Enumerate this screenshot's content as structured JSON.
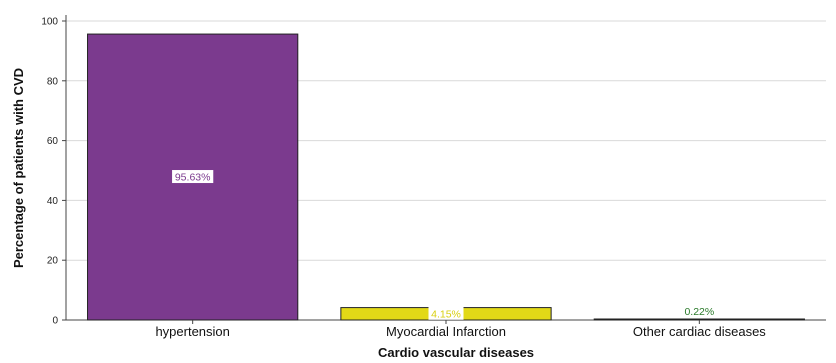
{
  "chart_data": {
    "type": "bar",
    "title": "",
    "xlabel": "Cardio vascular diseases",
    "ylabel": "Percentage of patients with CVD",
    "ylim": [
      0,
      100
    ],
    "yticks": [
      0,
      20,
      40,
      60,
      80,
      100
    ],
    "yticklabels": [
      "0",
      "20",
      "40",
      "60",
      "80",
      "100"
    ],
    "grid": true,
    "categories": [
      "hypertension",
      "Myocardial Infarction",
      "Other cardiac diseases"
    ],
    "values": [
      95.63,
      4.15,
      0.22
    ],
    "data_labels": [
      "95.63%",
      "4.15%",
      "0.22%"
    ],
    "bar_colors": [
      "#7b3a8e",
      "#e2d917",
      "#2a7a2a"
    ],
    "label_colors": [
      "#7b3a8e",
      "#d8cf10",
      "#2a7a2a"
    ]
  }
}
